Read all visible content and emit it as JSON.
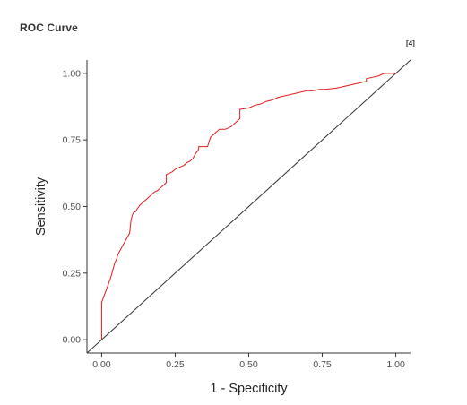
{
  "panel": {
    "title": "ROC Curve",
    "ref_marker": "[4]"
  },
  "chart_data": {
    "type": "line",
    "title": "ROC Curve",
    "xlabel": "1 - Specificity",
    "ylabel": "Sensitivity",
    "xlim": [
      -0.05,
      1.05
    ],
    "ylim": [
      -0.05,
      1.05
    ],
    "x_ticks": [
      0,
      0.25,
      0.5,
      0.75,
      1
    ],
    "y_ticks": [
      0,
      0.25,
      0.5,
      0.75,
      1
    ],
    "x_tick_labels": [
      "0.00",
      "0.25",
      "0.50",
      "0.75",
      "1.00"
    ],
    "y_tick_labels": [
      "0.00",
      "0.25",
      "0.50",
      "0.75",
      "1.00"
    ],
    "grid": false,
    "colors": {
      "curve": "#e41a1c",
      "reference": "#333333",
      "axis": "#333333"
    },
    "series": [
      {
        "name": "ROC",
        "x": [
          0,
          0,
          0.005,
          0.01,
          0.015,
          0.02,
          0.025,
          0.03,
          0.035,
          0.04,
          0.045,
          0.05,
          0.055,
          0.06,
          0.065,
          0.07,
          0.075,
          0.08,
          0.09,
          0.095,
          0.1,
          0.105,
          0.11,
          0.115,
          0.12,
          0.13,
          0.14,
          0.15,
          0.16,
          0.17,
          0.18,
          0.19,
          0.2,
          0.21,
          0.22,
          0.22,
          0.23,
          0.24,
          0.25,
          0.26,
          0.27,
          0.28,
          0.29,
          0.3,
          0.31,
          0.32,
          0.33,
          0.33,
          0.36,
          0.37,
          0.38,
          0.39,
          0.4,
          0.41,
          0.42,
          0.43,
          0.44,
          0.45,
          0.46,
          0.47,
          0.47,
          0.5,
          0.52,
          0.54,
          0.56,
          0.58,
          0.6,
          0.62,
          0.64,
          0.66,
          0.68,
          0.7,
          0.72,
          0.74,
          0.76,
          0.8,
          0.82,
          0.84,
          0.86,
          0.88,
          0.9,
          0.9,
          0.92,
          0.94,
          0.96,
          0.98,
          1
        ],
        "y": [
          0,
          0.14,
          0.155,
          0.17,
          0.185,
          0.2,
          0.215,
          0.23,
          0.25,
          0.27,
          0.29,
          0.3,
          0.32,
          0.33,
          0.34,
          0.35,
          0.36,
          0.37,
          0.39,
          0.4,
          0.45,
          0.47,
          0.48,
          0.48,
          0.49,
          0.505,
          0.515,
          0.525,
          0.535,
          0.545,
          0.555,
          0.56,
          0.57,
          0.58,
          0.59,
          0.62,
          0.625,
          0.63,
          0.64,
          0.645,
          0.65,
          0.655,
          0.665,
          0.67,
          0.68,
          0.7,
          0.715,
          0.725,
          0.725,
          0.76,
          0.77,
          0.78,
          0.79,
          0.79,
          0.79,
          0.795,
          0.8,
          0.81,
          0.82,
          0.83,
          0.865,
          0.87,
          0.88,
          0.885,
          0.895,
          0.9,
          0.91,
          0.915,
          0.92,
          0.925,
          0.93,
          0.935,
          0.935,
          0.94,
          0.94,
          0.945,
          0.95,
          0.955,
          0.96,
          0.965,
          0.97,
          0.98,
          0.985,
          0.99,
          1,
          1,
          1
        ]
      },
      {
        "name": "Reference",
        "x": [
          -0.05,
          1.05
        ],
        "y": [
          -0.05,
          1.05
        ]
      }
    ]
  }
}
